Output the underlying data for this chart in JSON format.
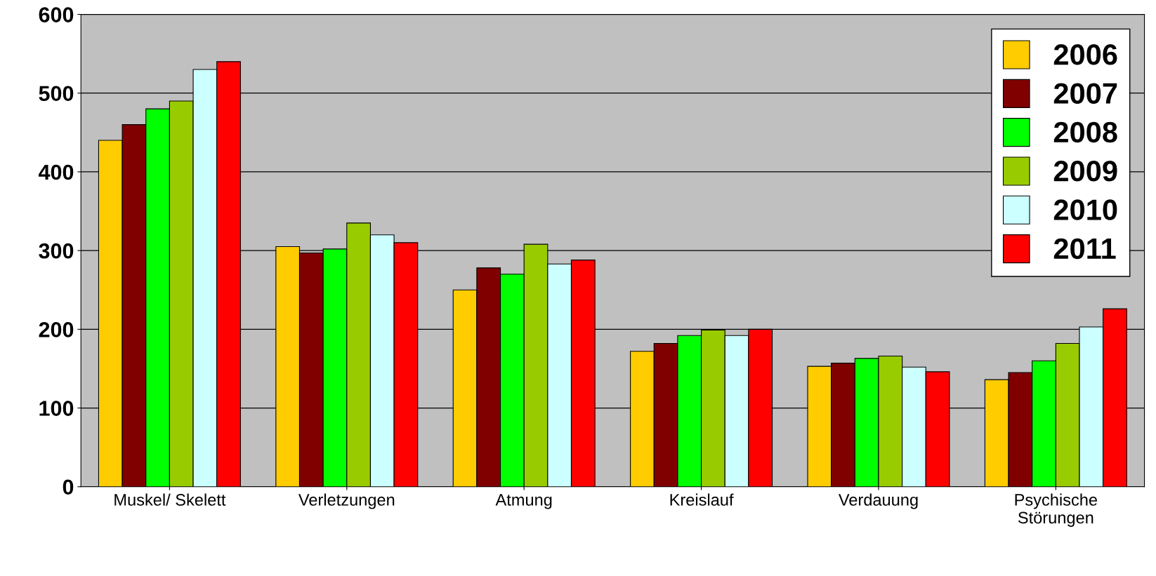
{
  "chart_data": {
    "type": "bar",
    "categories": [
      "Muskel/ Skelett",
      "Verletzungen",
      "Atmung",
      "Kreislauf",
      "Verdauung",
      "Psychische\nStörungen"
    ],
    "series": [
      {
        "name": "2006",
        "color": "#ffcc00",
        "values": [
          440,
          305,
          250,
          172,
          153,
          136
        ]
      },
      {
        "name": "2007",
        "color": "#800000",
        "values": [
          460,
          297,
          278,
          182,
          157,
          145
        ]
      },
      {
        "name": "2008",
        "color": "#00ff00",
        "values": [
          480,
          302,
          270,
          192,
          163,
          160
        ]
      },
      {
        "name": "2009",
        "color": "#99cc00",
        "values": [
          490,
          335,
          308,
          199,
          166,
          182
        ]
      },
      {
        "name": "2010",
        "color": "#ccffff",
        "values": [
          530,
          320,
          283,
          192,
          152,
          203
        ]
      },
      {
        "name": "2011",
        "color": "#ff0000",
        "values": [
          540,
          310,
          288,
          200,
          146,
          226
        ]
      }
    ],
    "ylim": [
      0,
      600
    ],
    "yticks": [
      0,
      100,
      200,
      300,
      400,
      500,
      600
    ],
    "grid": "y",
    "legend": "top right"
  }
}
